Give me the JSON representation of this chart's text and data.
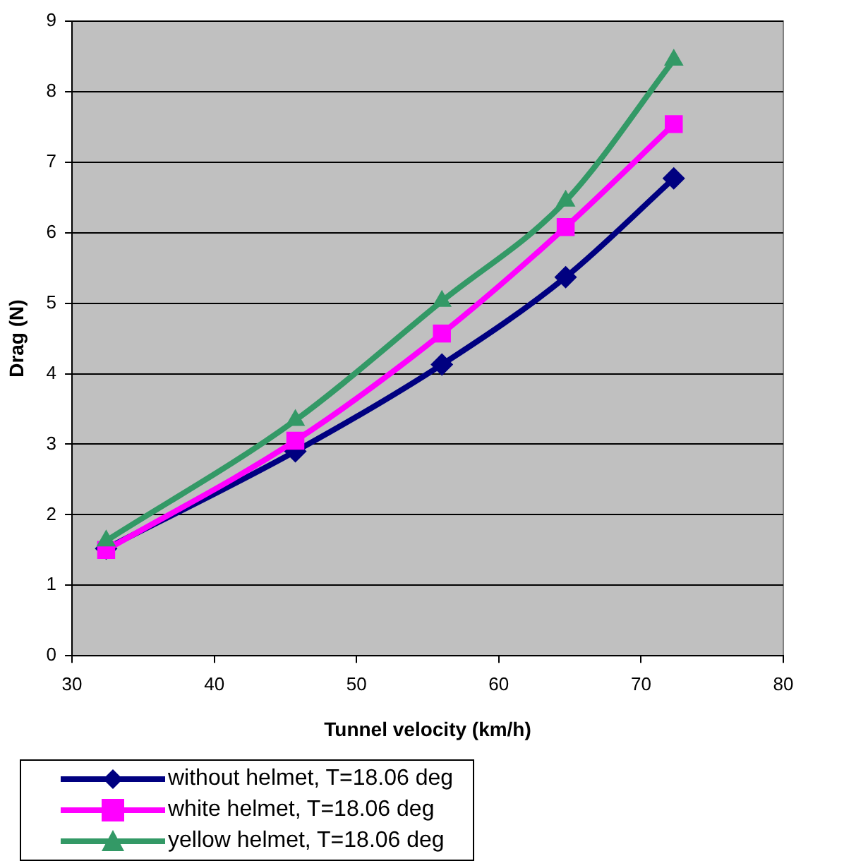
{
  "chart_data": {
    "type": "line",
    "xlabel": "Tunnel velocity (km/h)",
    "ylabel": "Drag (N)",
    "xlim": [
      30,
      80
    ],
    "xticks": [
      30,
      40,
      50,
      60,
      70,
      80
    ],
    "ylim": [
      0,
      9
    ],
    "yticks": [
      0,
      1,
      2,
      3,
      4,
      5,
      6,
      7,
      8,
      9
    ],
    "grid": "y",
    "legend": "bottom left",
    "series": [
      {
        "name": "without helmet, T=18.06 deg",
        "color": "#000080",
        "marker": "diamond",
        "x": [
          32.4,
          45.7,
          56.0,
          64.7,
          72.3
        ],
        "values": [
          1.52,
          2.9,
          4.13,
          5.37,
          6.77
        ]
      },
      {
        "name": "white helmet, T=18.06 deg",
        "color": "#ff00ff",
        "marker": "square",
        "x": [
          32.4,
          45.7,
          56.0,
          64.7,
          72.3
        ],
        "values": [
          1.5,
          3.05,
          4.57,
          6.08,
          7.54
        ]
      },
      {
        "name": "yellow helmet, T=18.06 deg",
        "color": "#339966",
        "marker": "triangle",
        "x": [
          32.4,
          45.7,
          56.0,
          64.7,
          72.3
        ],
        "values": [
          1.63,
          3.34,
          5.03,
          6.45,
          8.45
        ]
      }
    ]
  }
}
